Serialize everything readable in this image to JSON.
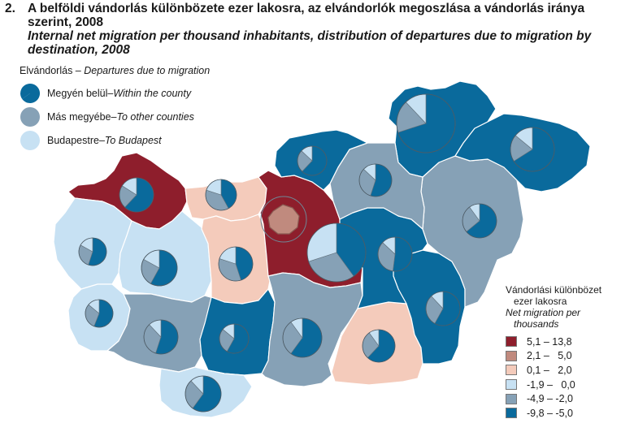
{
  "title": {
    "number": "2.",
    "hu": "A belföldi vándorlás különbözete ezer lakosra, az elvándorlók megoszlása a vándorlás iránya szerint, 2008",
    "en": "Internal net migration per thousand inhabitants, distribution of departures due to migration by destination, 2008"
  },
  "pie_legend": {
    "title_hu": "Elvándorlás",
    "title_sep": " – ",
    "title_en": "Departures due to migration",
    "items": [
      {
        "hu": "Megyén belül",
        "sep": " – ",
        "en": "Within the county",
        "color": "#0a6a9c"
      },
      {
        "hu": "Más megyébe",
        "sep": " – ",
        "en": "To other counties",
        "color": "#86a1b6"
      },
      {
        "hu": "Budapestre",
        "sep": "  – ",
        "en": "To Budapest",
        "color": "#c7e1f3"
      }
    ]
  },
  "scale": {
    "title_hu_1": "Vándorlási különbözet",
    "title_hu_2": "ezer lakosra",
    "title_en_1": "Net migration per",
    "title_en_2": "thousands",
    "classes": [
      {
        "label": "5,1 – 13,8",
        "color": "#8e1e2c"
      },
      {
        "label": "2,1 –   5,0",
        "color": "#c08a7e"
      },
      {
        "label": "0,1 –   2,0",
        "color": "#f4cbbb"
      },
      {
        "label": "-1,9 –   0,0",
        "color": "#c7e1f3"
      },
      {
        "label": "-4,9 – -2,0",
        "color": "#86a1b6"
      },
      {
        "label": "-9,8 – -5,0",
        "color": "#0a6a9c"
      }
    ]
  },
  "colors": {
    "within": "#0a6a9c",
    "other": "#86a1b6",
    "budapest": "#c7e1f3",
    "border": "#ffffff",
    "background": "#ffffff"
  }
}
